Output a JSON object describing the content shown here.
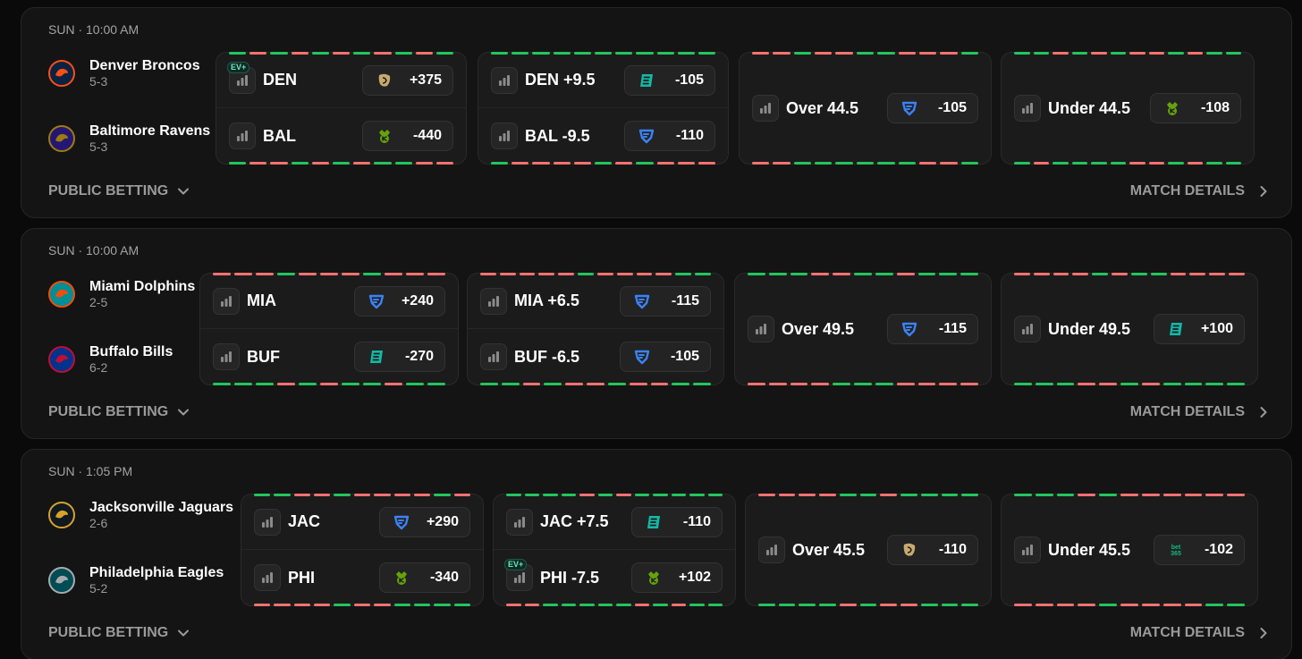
{
  "colors": {
    "green": "#22c55e",
    "red": "#f87171",
    "fanduel": "#3b82f6",
    "draftkings": "#65a30d",
    "espnbet": "#14b8a6",
    "betmgm": "#c9a96e",
    "bet365": "#10b981",
    "ev_badge": "#6ee7b7"
  },
  "labels": {
    "public_betting": "PUBLIC BETTING",
    "match_details": "MATCH DETAILS",
    "ev_badge": "EV+",
    "bet365_logo": "bet 365"
  },
  "games": [
    {
      "time": "SUN · 10:00 AM",
      "teams": [
        {
          "name": "Denver Broncos",
          "record": "5-3",
          "logo": "broncos-logo",
          "color": "#0a2343",
          "accent": "#fb4f14"
        },
        {
          "name": "Baltimore Ravens",
          "record": "5-3",
          "logo": "ravens-logo",
          "color": "#241773",
          "accent": "#9e7c0c"
        }
      ],
      "markets": [
        {
          "type": "moneyline",
          "stripe_top": "grgrgrgrgrg",
          "stripe_bot": "grrgrgrggrr",
          "rows": [
            {
              "label": "DEN",
              "book": "betmgm",
              "odds": "+375",
              "ev": true
            },
            {
              "label": "BAL",
              "book": "draftkings",
              "odds": "-440",
              "ev": false
            }
          ]
        },
        {
          "type": "spread",
          "stripe_top": "ggggggggggg",
          "stripe_bot": "grrrrgrgrrr",
          "rows": [
            {
              "label": "DEN +9.5",
              "book": "espnbet",
              "odds": "-105",
              "ev": false
            },
            {
              "label": "BAL -9.5",
              "book": "fanduel",
              "odds": "-110",
              "ev": false
            }
          ]
        },
        {
          "type": "total",
          "stripe_top": "rrgrrggrrrg",
          "stripe_bot": "rrggggggrrg",
          "rows": [
            {
              "label": "Over 44.5",
              "book": "fanduel",
              "odds": "-105",
              "ev": false
            }
          ]
        },
        {
          "type": "total",
          "stripe_top": "ggrgrgrrgrgg",
          "stripe_bot": "grggggrrgrgg",
          "rows": [
            {
              "label": "Under 44.5",
              "book": "draftkings",
              "odds": "-108",
              "ev": false
            }
          ]
        }
      ]
    },
    {
      "time": "SUN · 10:00 AM",
      "teams": [
        {
          "name": "Miami Dolphins",
          "record": "2-5",
          "logo": "dolphins-logo",
          "color": "#008e97",
          "accent": "#fc4c02"
        },
        {
          "name": "Buffalo Bills",
          "record": "6-2",
          "logo": "bills-logo",
          "color": "#00338d",
          "accent": "#c60c30"
        }
      ],
      "markets": [
        {
          "type": "moneyline",
          "stripe_top": "rrrgrrrgrrr",
          "stripe_bot": "gggrgrggrgg",
          "rows": [
            {
              "label": "MIA",
              "book": "fanduel",
              "odds": "+240",
              "ev": false
            },
            {
              "label": "BUF",
              "book": "espnbet",
              "odds": "-270",
              "ev": false
            }
          ]
        },
        {
          "type": "spread",
          "stripe_top": "rrrrrgrrrrgg",
          "stripe_bot": "ggrgrrgrrgg",
          "rows": [
            {
              "label": "MIA +6.5",
              "book": "fanduel",
              "odds": "-115",
              "ev": false
            },
            {
              "label": "BUF -6.5",
              "book": "fanduel",
              "odds": "-105",
              "ev": false
            }
          ]
        },
        {
          "type": "total",
          "stripe_top": "gggrrggrggg",
          "stripe_bot": "rrrrgggrrrr",
          "rows": [
            {
              "label": "Over 49.5",
              "book": "fanduel",
              "odds": "-115",
              "ev": false
            }
          ]
        },
        {
          "type": "total",
          "stripe_top": "rrrrgrggrrrr",
          "stripe_bot": "gggrrgrgggg",
          "rows": [
            {
              "label": "Under 49.5",
              "book": "espnbet",
              "odds": "+100",
              "ev": false
            }
          ]
        }
      ]
    },
    {
      "time": "SUN · 1:05 PM",
      "teams": [
        {
          "name": "Jacksonville Jaguars",
          "record": "2-6",
          "logo": "jaguars-logo",
          "color": "#101820",
          "accent": "#d7a22a"
        },
        {
          "name": "Philadelphia Eagles",
          "record": "5-2",
          "logo": "eagles-logo",
          "color": "#004c54",
          "accent": "#a5acaf"
        }
      ],
      "markets": [
        {
          "type": "moneyline",
          "stripe_top": "ggrrgrrrrgr",
          "stripe_bot": "rrrrgrrgggg",
          "rows": [
            {
              "label": "JAC",
              "book": "fanduel",
              "odds": "+290",
              "ev": false
            },
            {
              "label": "PHI",
              "book": "draftkings",
              "odds": "-340",
              "ev": false
            }
          ]
        },
        {
          "type": "spread",
          "stripe_top": "ggggrgrggggg",
          "stripe_bot": "rrgggggrgrgg",
          "rows": [
            {
              "label": "JAC +7.5",
              "book": "espnbet",
              "odds": "-110",
              "ev": false
            },
            {
              "label": "PHI -7.5",
              "book": "draftkings",
              "odds": "+102",
              "ev": true
            }
          ]
        },
        {
          "type": "total",
          "stripe_top": "rrrrggrgggg",
          "stripe_bot": "ggggrgrrggg",
          "rows": [
            {
              "label": "Over 45.5",
              "book": "betmgm",
              "odds": "-110",
              "ev": false
            }
          ]
        },
        {
          "type": "total",
          "stripe_top": "gggrgrrrrrr",
          "stripe_bot": "rrrrgrrrrgg",
          "rows": [
            {
              "label": "Under 45.5",
              "book": "bet365",
              "odds": "-102",
              "ev": false
            }
          ]
        }
      ]
    }
  ]
}
